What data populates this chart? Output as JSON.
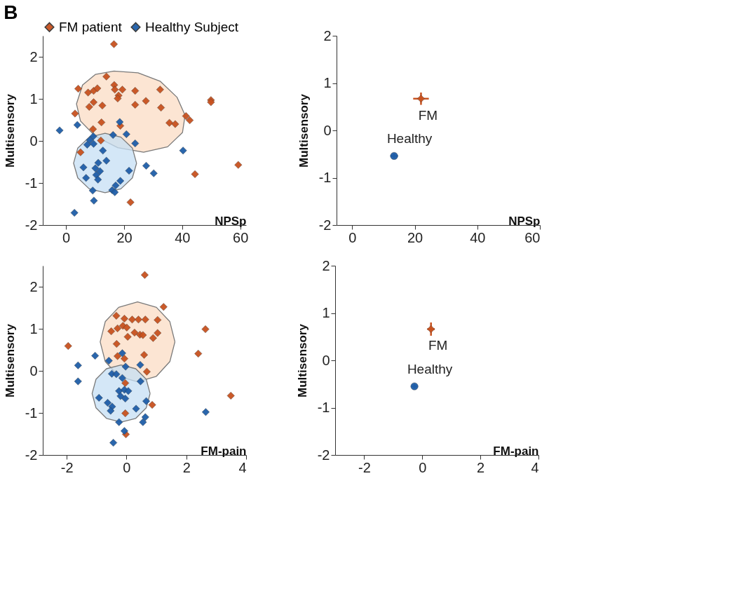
{
  "chart_data": [
    {
      "type": "scatter",
      "annotations": [
        "B"
      ],
      "xlabel": "NPSp",
      "ylabel": "Multisensory",
      "xlim": [
        -8,
        62
      ],
      "ylim": [
        -2,
        2.5
      ],
      "xticks": [
        0,
        20,
        40,
        60
      ],
      "yticks": [
        -2,
        -1,
        0,
        1,
        2
      ],
      "legend": "top",
      "series": [
        {
          "type": "area",
          "color": "#fbdcc4",
          "x": [
            16.5,
            24.8,
            32.4,
            38.2,
            41.0,
            40.1,
            35.0,
            26.7,
            17.8,
            10.1,
            5.0,
            3.6,
            5.7,
            10.1,
            16.5
          ],
          "values": [
            1.66,
            1.62,
            1.42,
            1.04,
            0.61,
            0.2,
            -0.14,
            -0.27,
            -0.16,
            0.11,
            0.47,
            0.88,
            1.33,
            1.58,
            1.66
          ]
        },
        {
          "type": "area",
          "color": "#c5dff4",
          "x": [
            24.3,
            22.85,
            18.9,
            13.45,
            8.0,
            4.05,
            2.6,
            4.05,
            8.0,
            13.45,
            18.9,
            22.85,
            24.3
          ],
          "values": [
            -0.53,
            -0.17,
            0.09,
            0.18,
            0.09,
            -0.17,
            -0.53,
            -0.88,
            -1.14,
            -1.23,
            -1.14,
            -0.88,
            -0.53
          ]
        },
        {
          "name": "FM patient",
          "color": "#c8521f",
          "marker": "diamond",
          "x": [
            16.5,
            13.9,
            4.2,
            7.6,
            9.5,
            10.8,
            16.6,
            16.8,
            19.4,
            23.8,
            32.4,
            18.1,
            17.8,
            9.5,
            8.0,
            12.5,
            23.8,
            27.5,
            32.7,
            49.9,
            49.9,
            3.1,
            12.2,
            18.7,
            41.3,
            42.6,
            35.6,
            37.6,
            9.3,
            12.0,
            5.0,
            44.4,
            59.3,
            22.2
          ],
          "values": [
            2.3,
            1.53,
            1.24,
            1.15,
            1.19,
            1.25,
            1.33,
            1.22,
            1.22,
            1.19,
            1.22,
            1.08,
            1.01,
            0.92,
            0.81,
            0.84,
            0.86,
            0.95,
            0.79,
            0.97,
            0.92,
            0.65,
            0.44,
            0.36,
            0.59,
            0.49,
            0.43,
            0.4,
            0.28,
            0.01,
            -0.27,
            -0.79,
            -0.57,
            -1.46
          ]
        },
        {
          "name": "Healthy Subject",
          "color": "#1f5ea8",
          "marker": "diamond",
          "x": [
            -2.2,
            3.9,
            18.5,
            16.2,
            20.8,
            23.8,
            9.4,
            8.2,
            7.3,
            9.5,
            12.7,
            40.3,
            13.9,
            11.1,
            6.0,
            10.1,
            11.7,
            10.4,
            6.9,
            11.0,
            21.7,
            27.6,
            30.2,
            18.7,
            17.1,
            15.9,
            16.8,
            9.2,
            9.6,
            2.9
          ],
          "values": [
            0.25,
            0.38,
            0.45,
            0.14,
            0.16,
            -0.06,
            0.11,
            0.02,
            -0.09,
            -0.07,
            -0.23,
            -0.23,
            -0.47,
            -0.52,
            -0.63,
            -0.65,
            -0.72,
            -0.81,
            -0.88,
            -0.92,
            -0.71,
            -0.59,
            -0.77,
            -0.95,
            -1.06,
            -1.17,
            -1.22,
            -1.18,
            -1.42,
            -1.71
          ]
        }
      ]
    },
    {
      "type": "scatter",
      "xlabel": "NPSp",
      "ylabel": "Multisensory",
      "xlim": [
        -5,
        60
      ],
      "ylim": [
        -2,
        2
      ],
      "xticks": [
        0,
        20,
        40,
        60
      ],
      "yticks": [
        -2,
        -1,
        0,
        1,
        2
      ],
      "series": [
        {
          "name": "FM",
          "color": "#c8521f",
          "marker": "diamond",
          "x": [
            22.0
          ],
          "values": [
            0.67
          ],
          "errors": [
            0.13
          ],
          "xerrors": [
            2.5
          ]
        },
        {
          "name": "Healthy",
          "color": "#1f5ea8",
          "marker": "circle",
          "x": [
            13.4
          ],
          "values": [
            -0.54
          ],
          "errors": [
            0.05
          ],
          "xerrors": [
            1.2
          ]
        }
      ]
    },
    {
      "type": "scatter",
      "xlabel": "FM-pain",
      "ylabel": "Multisensory",
      "xlim": [
        -2.8,
        4
      ],
      "ylim": [
        -2,
        2.5
      ],
      "xticks": [
        -2,
        0,
        2,
        4
      ],
      "yticks": [
        -2,
        -1,
        0,
        1,
        2
      ],
      "series": [
        {
          "type": "area",
          "color": "#fbdcc4",
          "x": [
            1.62,
            1.45,
            1.0,
            0.37,
            -0.26,
            -0.71,
            -0.88,
            -0.71,
            -0.26,
            0.37,
            1.0,
            1.45,
            1.62
          ],
          "values": [
            0.69,
            1.17,
            1.51,
            1.64,
            1.51,
            1.17,
            0.69,
            0.22,
            -0.13,
            -0.26,
            -0.13,
            0.22,
            0.69
          ]
        },
        {
          "type": "area",
          "color": "#c5dff4",
          "x": [
            0.79,
            0.66,
            0.31,
            -0.18,
            -0.67,
            -1.02,
            -1.15,
            -1.02,
            -0.67,
            -0.18,
            0.31,
            0.66,
            0.79
          ],
          "values": [
            -0.54,
            -0.2,
            0.05,
            0.14,
            0.05,
            -0.2,
            -0.54,
            -0.88,
            -1.13,
            -1.22,
            -1.13,
            -0.88,
            -0.54
          ]
        },
        {
          "color": "#c8521f",
          "marker": "diamond",
          "x": [
            0.61,
            1.24,
            -0.34,
            -0.07,
            0.19,
            0.4,
            0.63,
            1.04,
            -0.51,
            -0.3,
            -0.12,
            0.01,
            0.04,
            0.27,
            0.45,
            0.55,
            0.89,
            1.04,
            2.64,
            -1.95,
            -0.33,
            -0.3,
            -0.07,
            0.59,
            0.68,
            2.4,
            3.49,
            -0.04,
            0.86,
            -0.04,
            -0.02
          ],
          "values": [
            2.28,
            1.52,
            1.31,
            1.24,
            1.22,
            1.22,
            1.22,
            1.21,
            0.94,
            1.01,
            1.07,
            1.03,
            0.81,
            0.91,
            0.86,
            0.85,
            0.78,
            0.9,
            0.99,
            0.59,
            0.64,
            0.35,
            0.29,
            0.38,
            -0.02,
            0.41,
            -0.59,
            -0.29,
            -0.81,
            -1.01,
            -1.51
          ]
        },
        {
          "color": "#1f5ea8",
          "marker": "diamond",
          "x": [
            -1.05,
            -1.62,
            -1.62,
            -0.59,
            -0.14,
            0.46,
            -0.03,
            -0.49,
            -0.34,
            -0.14,
            0.47,
            -0.25,
            -0.07,
            0.06,
            -0.92,
            -0.2,
            -0.04,
            -0.63,
            -0.48,
            -0.53,
            0.66,
            0.32,
            -0.25,
            0.63,
            0.55,
            -0.07,
            -0.44,
            2.65
          ],
          "values": [
            0.36,
            0.13,
            -0.25,
            0.24,
            0.42,
            0.14,
            0.1,
            -0.07,
            -0.08,
            -0.17,
            -0.25,
            -0.48,
            -0.45,
            -0.48,
            -0.64,
            -0.6,
            -0.66,
            -0.76,
            -0.85,
            -0.95,
            -0.72,
            -0.9,
            -1.22,
            -1.1,
            -1.22,
            -1.43,
            -1.71,
            -0.98
          ]
        }
      ]
    },
    {
      "type": "scatter",
      "xlabel": "FM-pain",
      "ylabel": "Multisensory",
      "xlim": [
        -3,
        4
      ],
      "ylim": [
        -2,
        2
      ],
      "xticks": [
        -2,
        0,
        2,
        4
      ],
      "yticks": [
        -2,
        -1,
        0,
        1,
        2
      ],
      "series": [
        {
          "name": "FM",
          "color": "#c8521f",
          "marker": "diamond",
          "x": [
            0.3
          ],
          "values": [
            0.66
          ],
          "errors": [
            0.14
          ],
          "xerrors": [
            0.13
          ]
        },
        {
          "name": "Healthy",
          "color": "#1f5ea8",
          "marker": "circle",
          "x": [
            -0.27
          ],
          "values": [
            -0.55
          ],
          "errors": [
            0.04
          ],
          "xerrors": [
            0.08
          ]
        }
      ]
    }
  ]
}
